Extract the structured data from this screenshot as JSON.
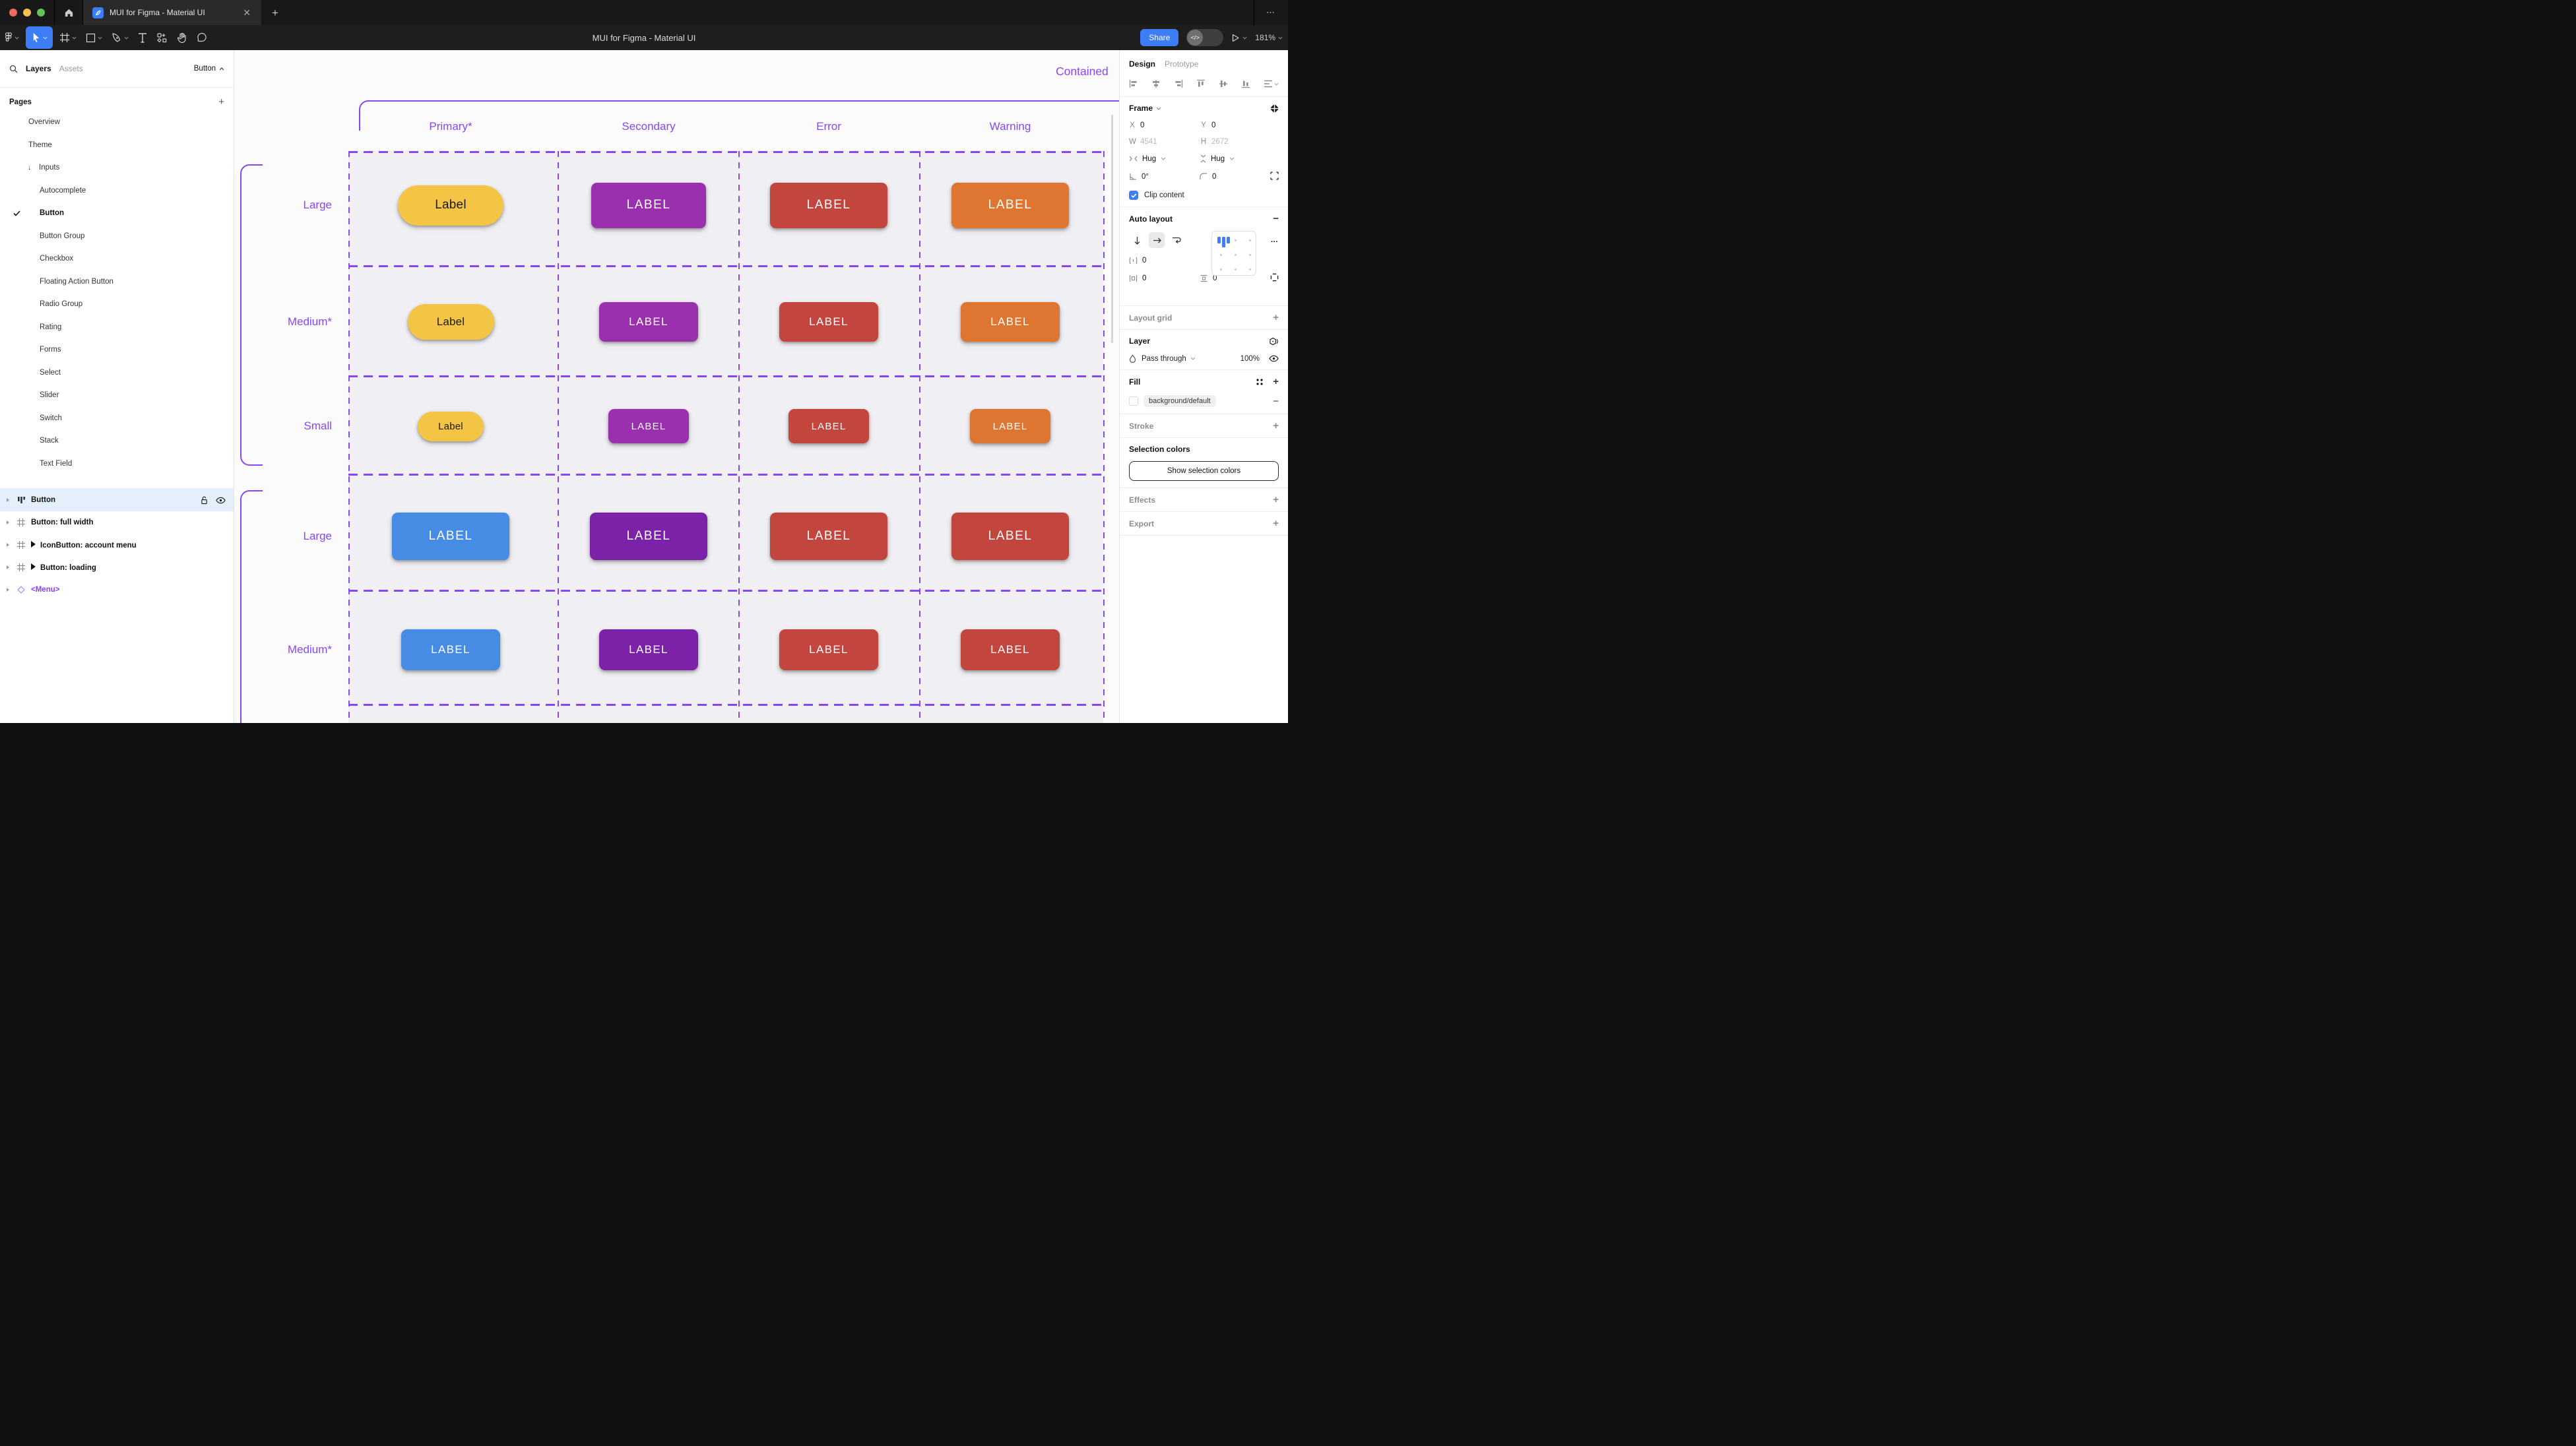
{
  "window": {
    "tab_title": "MUI for Figma - Material UI",
    "close_glyph": "✕",
    "new_tab_glyph": "+",
    "more_glyph": "⋯",
    "traffic_colors": [
      "#ee6a5f",
      "#f5be4f",
      "#62c454"
    ]
  },
  "toolbar": {
    "doc_title": "MUI for Figma - Material UI",
    "share_label": "Share",
    "dev_toggle_glyph": "</>",
    "zoom_level": "181%"
  },
  "left_panel": {
    "tabs": {
      "layers": "Layers",
      "assets": "Assets"
    },
    "selection_dropdown": "Button",
    "pages_header": "Pages",
    "pages": [
      {
        "label": "Overview",
        "indent": 0
      },
      {
        "label": "Theme",
        "indent": 0
      },
      {
        "label": "Inputs",
        "indent": 0,
        "arrow": true
      },
      {
        "label": "Autocomplete",
        "indent": 1
      },
      {
        "label": "Button",
        "indent": 1,
        "active": true
      },
      {
        "label": "Button Group",
        "indent": 1
      },
      {
        "label": "Checkbox",
        "indent": 1
      },
      {
        "label": "Floating Action Button",
        "indent": 1
      },
      {
        "label": "Radio Group",
        "indent": 1
      },
      {
        "label": "Rating",
        "indent": 1
      },
      {
        "label": "Forms",
        "indent": 1
      },
      {
        "label": "Select",
        "indent": 1
      },
      {
        "label": "Slider",
        "indent": 1
      },
      {
        "label": "Switch",
        "indent": 1
      },
      {
        "label": "Stack",
        "indent": 1
      },
      {
        "label": "Text Field",
        "indent": 1
      }
    ],
    "layers": [
      {
        "label": "Button",
        "icon": "autolayout",
        "selected": true,
        "lock": true,
        "eye": true
      },
      {
        "label": "Button: full width",
        "icon": "frame"
      },
      {
        "label": "IconButton: account menu",
        "icon": "frame",
        "instance": true
      },
      {
        "label": "Button: loading",
        "icon": "frame",
        "instance": true
      },
      {
        "label": "<Menu>",
        "icon": "diamond",
        "purple": true
      }
    ]
  },
  "canvas": {
    "section_label": "Contained",
    "accent": "#8747f5",
    "columns": [
      "Primary*",
      "Secondary",
      "Error",
      "Warning"
    ],
    "row_labels": [
      "Large",
      "Medium*",
      "Small",
      "Large",
      "Medium*"
    ],
    "button_rows": [
      [
        {
          "text": "Label",
          "bg": "#f4c445",
          "fg": "#1a1a1a",
          "pill": true,
          "w": 160,
          "h": 61,
          "fs": 19
        },
        {
          "text": "LABEL",
          "bg": "#9b30ae",
          "fg": "#ffffff",
          "w": 174,
          "h": 69,
          "fs": 19
        },
        {
          "text": "LABEL",
          "bg": "#c2463d",
          "fg": "#ffffff",
          "w": 178,
          "h": 69,
          "fs": 19
        },
        {
          "text": "LABEL",
          "bg": "#de7631",
          "fg": "#ffffff",
          "w": 178,
          "h": 69,
          "fs": 19
        }
      ],
      [
        {
          "text": "Label",
          "bg": "#f4c445",
          "fg": "#1a1a1a",
          "pill": true,
          "w": 131,
          "h": 54,
          "fs": 17
        },
        {
          "text": "LABEL",
          "bg": "#9b30ae",
          "fg": "#ffffff",
          "w": 150,
          "h": 60,
          "fs": 17
        },
        {
          "text": "LABEL",
          "bg": "#c2463d",
          "fg": "#ffffff",
          "w": 150,
          "h": 60,
          "fs": 17
        },
        {
          "text": "LABEL",
          "bg": "#de7631",
          "fg": "#ffffff",
          "w": 150,
          "h": 60,
          "fs": 17
        }
      ],
      [
        {
          "text": "Label",
          "bg": "#f4c445",
          "fg": "#1a1a1a",
          "pill": true,
          "w": 100,
          "h": 45,
          "fs": 15
        },
        {
          "text": "LABEL",
          "bg": "#9b30ae",
          "fg": "#ffffff",
          "w": 122,
          "h": 52,
          "fs": 15
        },
        {
          "text": "LABEL",
          "bg": "#c2463d",
          "fg": "#ffffff",
          "w": 122,
          "h": 52,
          "fs": 15
        },
        {
          "text": "LABEL",
          "bg": "#de7631",
          "fg": "#ffffff",
          "w": 122,
          "h": 52,
          "fs": 15
        }
      ],
      [
        {
          "text": "LABEL",
          "bg": "#478ce4",
          "fg": "#ffffff",
          "w": 178,
          "h": 72,
          "fs": 19
        },
        {
          "text": "LABEL",
          "bg": "#7c22a8",
          "fg": "#ffffff",
          "w": 178,
          "h": 72,
          "fs": 19
        },
        {
          "text": "LABEL",
          "bg": "#c2463d",
          "fg": "#ffffff",
          "w": 178,
          "h": 72,
          "fs": 19
        },
        {
          "text": "LABEL",
          "bg": "#c2463d",
          "fg": "#ffffff",
          "w": 178,
          "h": 72,
          "fs": 19
        }
      ],
      [
        {
          "text": "LABEL",
          "bg": "#478ce4",
          "fg": "#ffffff",
          "w": 150,
          "h": 62,
          "fs": 17
        },
        {
          "text": "LABEL",
          "bg": "#7c22a8",
          "fg": "#ffffff",
          "w": 150,
          "h": 62,
          "fs": 17
        },
        {
          "text": "LABEL",
          "bg": "#c2463d",
          "fg": "#ffffff",
          "w": 150,
          "h": 62,
          "fs": 17
        },
        {
          "text": "LABEL",
          "bg": "#c2463d",
          "fg": "#ffffff",
          "w": 150,
          "h": 62,
          "fs": 17
        }
      ]
    ]
  },
  "right_panel": {
    "tabs": {
      "design": "Design",
      "prototype": "Prototype"
    },
    "frame": {
      "header": "Frame",
      "x_label": "X",
      "x_value": "0",
      "y_label": "Y",
      "y_value": "0",
      "w_label": "W",
      "w_value": "4541",
      "h_label": "H",
      "h_value": "2672",
      "hug_h": "Hug",
      "hug_v": "Hug",
      "angle_value": "0°",
      "radius_value": "0",
      "clip_label": "Clip content"
    },
    "auto_layout": {
      "header": "Auto layout",
      "gap_value": "0",
      "pad_h_value": "0",
      "pad_v_value": "0"
    },
    "layout_grid_header": "Layout grid",
    "layer": {
      "header": "Layer",
      "blend_mode": "Pass through",
      "opacity": "100%"
    },
    "fill": {
      "header": "Fill",
      "style_name": "background/default"
    },
    "stroke_header": "Stroke",
    "selection_colors": {
      "header": "Selection colors",
      "button_label": "Show selection colors"
    },
    "effects_header": "Effects",
    "export_header": "Export"
  }
}
